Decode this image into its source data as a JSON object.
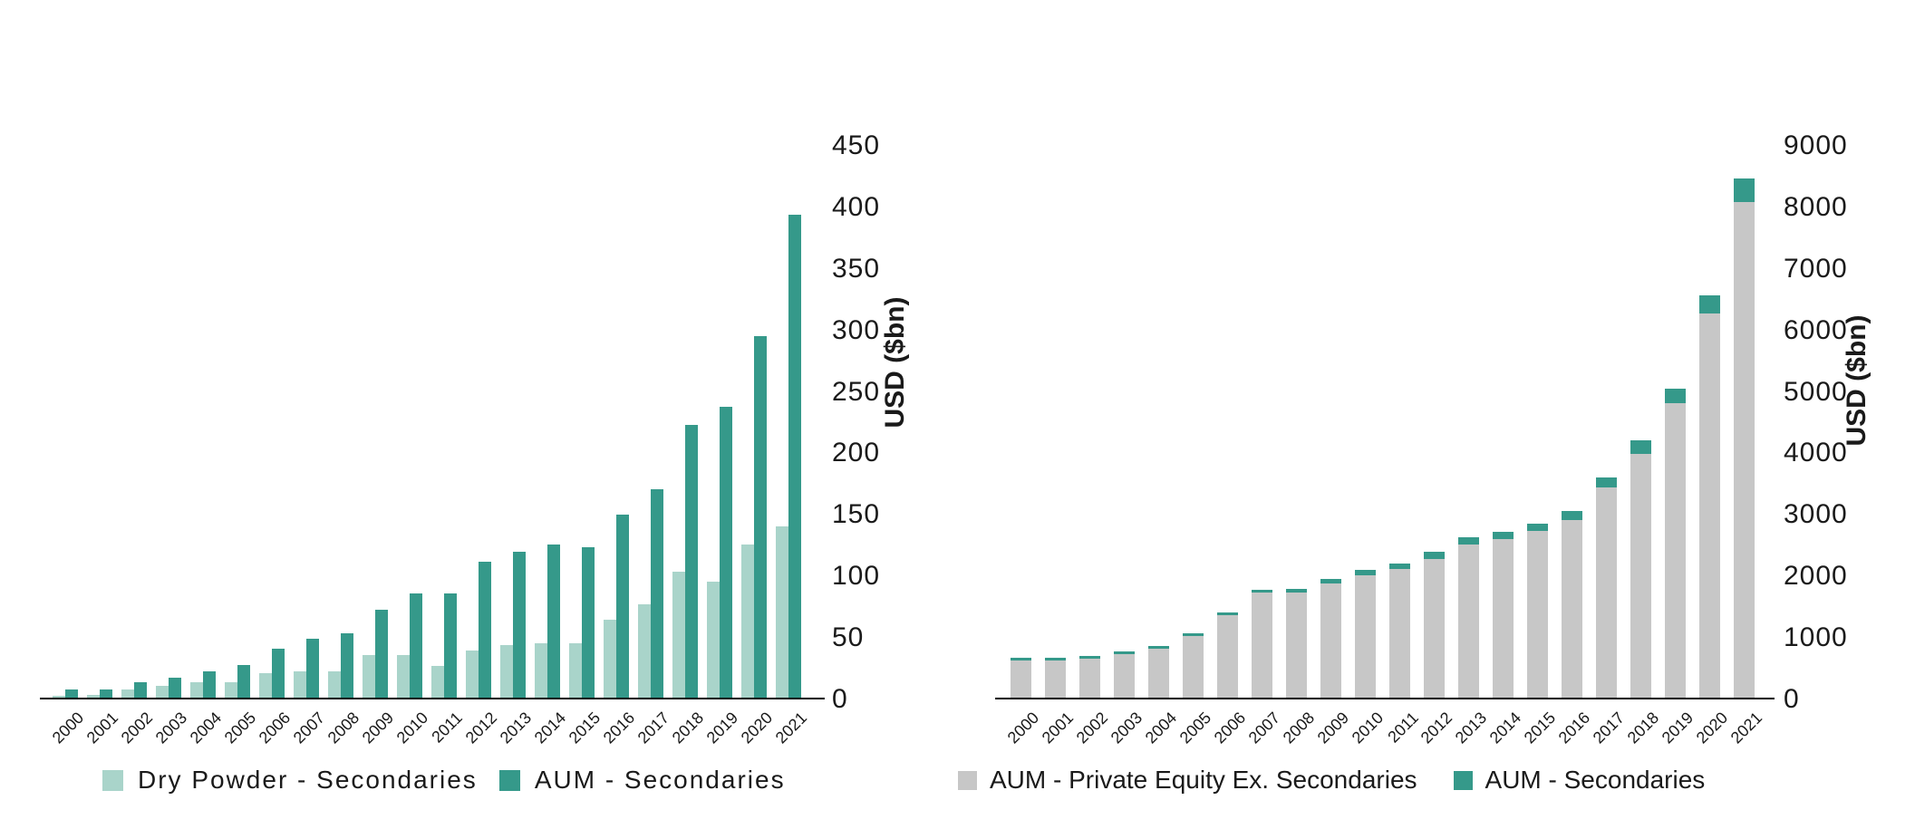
{
  "page": {
    "background_color": "#ffffff",
    "text_color": "#1a1a1a",
    "axis_color": "#000000"
  },
  "colors": {
    "teal": "#35998A",
    "light_teal": "#A9D4CA",
    "gray": "#C7C7C7"
  },
  "chart_data": [
    {
      "id": "secondaries-dry-powder-vs-aum",
      "type": "bar",
      "grouping": "grouped",
      "title": "",
      "xlabel": "",
      "ylabel": "USD ($bn)",
      "ylim": [
        0,
        450
      ],
      "ytick_step": 50,
      "yticks": [
        0,
        50,
        100,
        150,
        200,
        250,
        300,
        350,
        400,
        450
      ],
      "axis_side": "right",
      "grid": false,
      "legend_position": "bottom",
      "categories": [
        "2000",
        "2001",
        "2002",
        "2003",
        "2004",
        "2005",
        "2006",
        "2007",
        "2008",
        "2009",
        "2010",
        "2011",
        "2012",
        "2013",
        "2014",
        "2015",
        "2016",
        "2017",
        "2018",
        "2019",
        "2020",
        "2021"
      ],
      "series": [
        {
          "name": "Dry Powder - Secondaries",
          "color": "#A9D4CA",
          "values": [
            3,
            4,
            8,
            11,
            14,
            14,
            21,
            23,
            23,
            36,
            36,
            27,
            40,
            44,
            46,
            46,
            65,
            77,
            104,
            96,
            126,
            141
          ]
        },
        {
          "name": "AUM - Secondaries",
          "color": "#35998A",
          "values": [
            8,
            8,
            14,
            18,
            23,
            28,
            41,
            49,
            54,
            73,
            86,
            86,
            112,
            120,
            126,
            124,
            150,
            171,
            223,
            238,
            295,
            394
          ]
        }
      ]
    },
    {
      "id": "pe-aum-ex-secondaries-stacked",
      "type": "bar",
      "grouping": "stacked",
      "title": "",
      "xlabel": "",
      "ylabel": "USD ($bn)",
      "ylim": [
        0,
        9000
      ],
      "ytick_step": 1000,
      "yticks": [
        0,
        1000,
        2000,
        3000,
        4000,
        5000,
        6000,
        7000,
        8000,
        9000
      ],
      "axis_side": "right",
      "grid": false,
      "legend_position": "bottom",
      "categories": [
        "2000",
        "2001",
        "2002",
        "2003",
        "2004",
        "2005",
        "2006",
        "2007",
        "2008",
        "2009",
        "2010",
        "2011",
        "2012",
        "2013",
        "2014",
        "2015",
        "2016",
        "2017",
        "2018",
        "2019",
        "2020",
        "2021"
      ],
      "series": [
        {
          "name": "AUM - Private Equity Ex. Secondaries",
          "color": "#C7C7C7",
          "values": [
            640,
            630,
            670,
            735,
            825,
            1025,
            1365,
            1740,
            1740,
            1880,
            2020,
            2120,
            2290,
            2520,
            2600,
            2740,
            2920,
            3440,
            3990,
            4820,
            6270,
            8080
          ]
        },
        {
          "name": "AUM - Secondaries",
          "color": "#35998A",
          "values": [
            8,
            8,
            14,
            18,
            23,
            28,
            41,
            49,
            54,
            73,
            86,
            86,
            112,
            120,
            126,
            124,
            150,
            171,
            223,
            238,
            295,
            394
          ]
        }
      ]
    }
  ]
}
